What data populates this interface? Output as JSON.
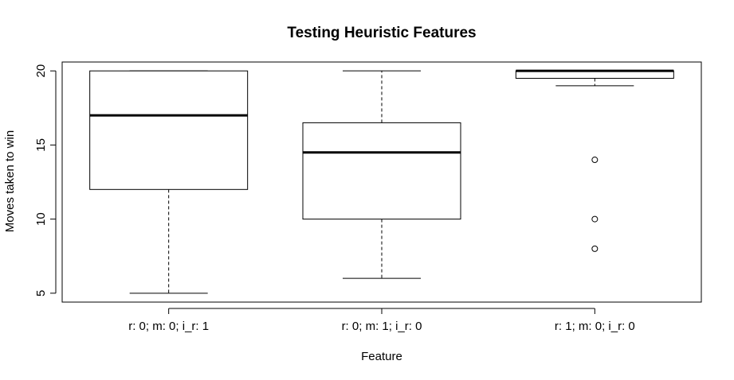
{
  "chart_data": {
    "type": "boxplot",
    "title": "Testing Heuristic Features",
    "xlabel": "Feature",
    "ylabel": "Moves taken to win",
    "ylim": [
      4.4,
      20.6
    ],
    "yticks": [
      5,
      10,
      15,
      20
    ],
    "ytick_labels": [
      "5",
      "10",
      "15",
      "20"
    ],
    "grid": false,
    "legend": "none",
    "categories": [
      "r: 0; m: 0; i_r: 1",
      "r: 0; m: 1; i_r: 0",
      "r: 1; m: 0; i_r: 0"
    ],
    "boxes": [
      {
        "whisker_low": 5,
        "q1": 12,
        "median": 17,
        "q3": 20,
        "whisker_high": 20,
        "outliers": []
      },
      {
        "whisker_low": 6,
        "q1": 10,
        "median": 14.5,
        "q3": 16.5,
        "whisker_high": 20,
        "outliers": []
      },
      {
        "whisker_low": 19,
        "q1": 19.5,
        "median": 20,
        "q3": 20,
        "whisker_high": 20,
        "outliers": [
          14,
          10,
          8
        ]
      }
    ]
  }
}
